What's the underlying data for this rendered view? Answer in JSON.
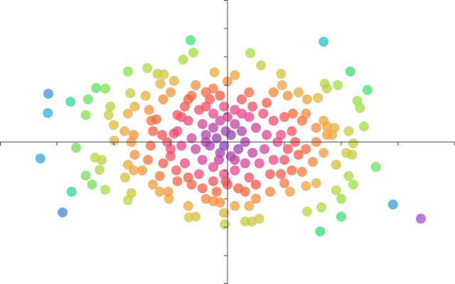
{
  "chart_data": {
    "type": "scatter",
    "title": "",
    "xlabel": "",
    "ylabel": "",
    "xlim": [
      -4,
      4
    ],
    "ylim": [
      -5,
      5
    ],
    "x_ticks": [
      -4,
      -3,
      -2,
      -1,
      0,
      1,
      2,
      3,
      4
    ],
    "y_ticks": [
      -5,
      -4,
      -3,
      -2,
      -1,
      0,
      1,
      2,
      3,
      4,
      5
    ],
    "tick_labels_shown": false,
    "axes_through_origin": true,
    "grid": false,
    "legend": "none",
    "axis_color": "#444444",
    "marker_opacity": 0.75,
    "color_stops": [
      "#7b3fc4",
      "#e8448f",
      "#fb5a3c",
      "#f8973a",
      "#d4c53a",
      "#9be33e",
      "#2fe07a",
      "#23cfc0",
      "#2f9fe0",
      "#6a5ad0",
      "#b34fc8"
    ],
    "points": [
      [
        -3.15,
        1.7
      ],
      [
        -3.16,
        1.02
      ],
      [
        -3.29,
        -0.58
      ],
      [
        -2.9,
        -2.48
      ],
      [
        -2.74,
        -1.75
      ],
      [
        -2.76,
        1.42
      ],
      [
        -2.66,
        -0.2
      ],
      [
        -2.49,
        0.95
      ],
      [
        -2.45,
        1.5
      ],
      [
        -2.31,
        1.9
      ],
      [
        -2.15,
        1.88
      ],
      [
        -2.49,
        -1.18
      ],
      [
        -2.38,
        -1.5
      ],
      [
        -2.15,
        -1.68
      ],
      [
        -2.25,
        -0.98
      ],
      [
        -2.33,
        -0.55
      ],
      [
        -2.21,
        -0.63
      ],
      [
        -1.99,
        0.05
      ],
      [
        -2.06,
        1.25
      ],
      [
        -2.09,
        0.95
      ],
      [
        -2.0,
        0.6
      ],
      [
        -1.75,
        2.48
      ],
      [
        -1.71,
        1.72
      ],
      [
        -1.41,
        2.6
      ],
      [
        -1.23,
        2.4
      ],
      [
        -1.12,
        2.38
      ],
      [
        -0.65,
        3.58
      ],
      [
        -0.6,
        3.15
      ],
      [
        -0.78,
        2.9
      ],
      [
        -0.94,
        2.15
      ],
      [
        -1.75,
        -2.05
      ],
      [
        -1.69,
        -1.8
      ],
      [
        -1.65,
        -1.0
      ],
      [
        -1.8,
        -1.25
      ],
      [
        -1.75,
        -0.8
      ],
      [
        -1.63,
        -0.45
      ],
      [
        -1.69,
        0
      ],
      [
        -1.65,
        0.25
      ],
      [
        -1.81,
        0.38
      ],
      [
        -1.75,
        1.0
      ],
      [
        -1.63,
        1.25
      ],
      [
        -1.44,
        1.63
      ],
      [
        -1.38,
        1.13
      ],
      [
        -1.34,
        0.75
      ],
      [
        -1.31,
        0.38
      ],
      [
        -1.35,
        -0.13
      ],
      [
        -1.4,
        -0.63
      ],
      [
        -1.5,
        -1.0
      ],
      [
        -1.31,
        -1.5
      ],
      [
        -1.19,
        -1.75
      ],
      [
        -1.03,
        -2.0
      ],
      [
        -1.04,
        -1.75
      ],
      [
        -1.19,
        -1.2
      ],
      [
        -1.13,
        -0.75
      ],
      [
        -1.0,
        -0.5
      ],
      [
        -1.06,
        0
      ],
      [
        -1.15,
        0.25
      ],
      [
        -1.25,
        0.8
      ],
      [
        -1.13,
        1.5
      ],
      [
        -1.0,
        1.75
      ],
      [
        -1.18,
        2.05
      ],
      [
        -0.88,
        0.95
      ],
      [
        -0.68,
        -2.65
      ],
      [
        -0.56,
        -2.63
      ],
      [
        -0.25,
        -2.08
      ],
      [
        -0.06,
        -2.5
      ],
      [
        -0.05,
        -2.9
      ],
      [
        0.31,
        -2.8
      ],
      [
        0.43,
        -2.8
      ],
      [
        0.56,
        -2.7
      ],
      [
        0.38,
        -2.25
      ],
      [
        0.5,
        -2.0
      ],
      [
        0.75,
        -1.75
      ],
      [
        1.0,
        -1.45
      ],
      [
        1.1,
        -1.75
      ],
      [
        0.94,
        -1.13
      ],
      [
        1.13,
        -1.0
      ],
      [
        1.31,
        -1.05
      ],
      [
        1.38,
        -1.55
      ],
      [
        1.56,
        -1.45
      ],
      [
        1.5,
        -0.7
      ],
      [
        1.38,
        -0.25
      ],
      [
        1.56,
        0
      ],
      [
        1.69,
        -0.38
      ],
      [
        1.75,
        0.25
      ],
      [
        1.56,
        0.5
      ],
      [
        1.38,
        1.0
      ],
      [
        1.31,
        0.75
      ],
      [
        1.4,
        1.5
      ],
      [
        1.25,
        1.75
      ],
      [
        1.06,
        1.63
      ],
      [
        0.96,
        2.0
      ],
      [
        0.94,
        2.4
      ],
      [
        0.59,
        2.7
      ],
      [
        0.4,
        3.13
      ],
      [
        0.13,
        2.35
      ],
      [
        -0.23,
        2.45
      ],
      [
        0,
        2.13
      ],
      [
        -0.25,
        1.88
      ],
      [
        1.69,
        3.53
      ],
      [
        2.16,
        2.48
      ],
      [
        2.46,
        1.83
      ],
      [
        1.94,
        2.0
      ],
      [
        1.75,
        1.88
      ],
      [
        1.71,
        2.05
      ],
      [
        1.59,
        1.55
      ],
      [
        2.28,
        1.45
      ],
      [
        2.33,
        1.2
      ],
      [
        2.4,
        0.55
      ],
      [
        2.13,
        0.38
      ],
      [
        2.21,
        -0.05
      ],
      [
        2.09,
        -0.38
      ],
      [
        2.19,
        -0.45
      ],
      [
        1.91,
        -0.8
      ],
      [
        2.13,
        -1.2
      ],
      [
        2.21,
        -1.5
      ],
      [
        1.91,
        -1.7
      ],
      [
        2.0,
        -2.0
      ],
      [
        1.65,
        -2.3
      ],
      [
        1.4,
        -2.45
      ],
      [
        2.0,
        -2.63
      ],
      [
        1.63,
        -3.15
      ],
      [
        2.61,
        -0.88
      ],
      [
        2.91,
        -2.2
      ],
      [
        3.4,
        -2.7
      ],
      [
        1.88,
        0.5
      ],
      [
        1.75,
        0.55
      ],
      [
        1.69,
        0.75
      ],
      [
        1.84,
        0.25
      ],
      [
        -0.25,
        0.5
      ],
      [
        -0.13,
        0.75
      ],
      [
        0,
        0.88
      ],
      [
        0.13,
        0.63
      ],
      [
        0.25,
        0.38
      ],
      [
        0.31,
        0
      ],
      [
        0.19,
        -0.25
      ],
      [
        0.06,
        -0.5
      ],
      [
        -0.13,
        -0.38
      ],
      [
        -0.31,
        -0.13
      ],
      [
        -0.38,
        0.25
      ],
      [
        -0.44,
        0.63
      ],
      [
        -0.25,
        1.0
      ],
      [
        -0.06,
        1.25
      ],
      [
        0.13,
        1.13
      ],
      [
        0.38,
        0.88
      ],
      [
        0.5,
        0.5
      ],
      [
        0.44,
        -0.38
      ],
      [
        0.31,
        -0.75
      ],
      [
        0.13,
        -1.0
      ],
      [
        -0.06,
        -1.13
      ],
      [
        -0.25,
        -0.88
      ],
      [
        -0.44,
        -0.63
      ],
      [
        -0.56,
        -0.25
      ],
      [
        -0.63,
        0.13
      ],
      [
        -0.69,
        0.75
      ],
      [
        -0.5,
        1.13
      ],
      [
        -0.31,
        1.5
      ],
      [
        -0.13,
        1.63
      ],
      [
        0.25,
        1.5
      ],
      [
        0.44,
        1.25
      ],
      [
        0.63,
        1.0
      ],
      [
        0.69,
        0.25
      ],
      [
        0.65,
        -0.25
      ],
      [
        0.56,
        -0.75
      ],
      [
        0.38,
        -1.25
      ],
      [
        0,
        -1.5
      ],
      [
        -0.25,
        -1.38
      ],
      [
        -0.5,
        -1.13
      ],
      [
        -0.75,
        -0.75
      ],
      [
        -0.81,
        -0.13
      ],
      [
        -0.88,
        0.38
      ],
      [
        -0.75,
        1.25
      ],
      [
        -0.63,
        1.63
      ],
      [
        -0.38,
        1.75
      ],
      [
        0.38,
        1.75
      ],
      [
        0.69,
        1.38
      ],
      [
        0.81,
        0.75
      ],
      [
        0.88,
        0
      ],
      [
        0.81,
        -0.63
      ],
      [
        0.75,
        -1.13
      ],
      [
        0.5,
        -1.5
      ],
      [
        0.19,
        -1.63
      ],
      [
        -0.19,
        -1.75
      ],
      [
        -0.44,
        -1.63
      ],
      [
        -0.69,
        -1.25
      ],
      [
        -0.9,
        -1.0
      ],
      [
        -1.0,
        -0.25
      ],
      [
        -0.94,
        0.3
      ],
      [
        -0.81,
        0.88
      ],
      [
        -0.56,
        2.0
      ],
      [
        -0.69,
        1.5
      ],
      [
        0.81,
        1.75
      ],
      [
        1.0,
        0.88
      ],
      [
        1.13,
        0.38
      ],
      [
        1.06,
        -0.25
      ],
      [
        1.0,
        -0.63
      ],
      [
        -0.38,
        0
      ],
      [
        -0.19,
        0.13
      ],
      [
        -0.06,
        -0.13
      ],
      [
        0.06,
        0.25
      ],
      [
        -0.03,
        0.38
      ],
      [
        -0.15,
        -0.63
      ],
      [
        0.13,
        -0.63
      ],
      [
        0.25,
        1.0
      ],
      [
        -0.38,
        1.25
      ],
      [
        -0.63,
        -1.5
      ],
      [
        -0.88,
        -1.38
      ],
      [
        0.94,
        0.25
      ],
      [
        1.19,
        0
      ],
      [
        1.25,
        -0.45
      ],
      [
        1.15,
        1.0
      ],
      [
        -0.69,
        -2.25
      ],
      [
        -0.38,
        -2.0
      ],
      [
        0.13,
        -2.25
      ],
      [
        0.31,
        -1.75
      ],
      [
        -0.13,
        -2.13
      ],
      [
        -0.03,
        -1.38
      ]
    ]
  }
}
